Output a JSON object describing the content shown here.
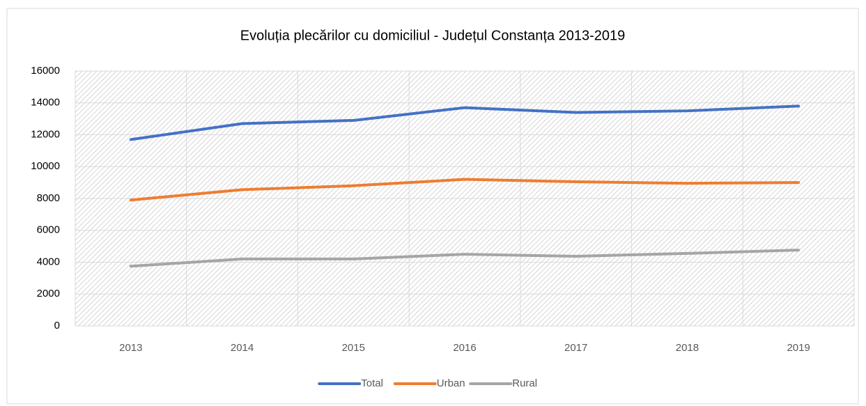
{
  "chart_data": {
    "type": "line",
    "title": "Evoluția plecărilor cu domiciliul - Județul Constanța 2013-2019",
    "categories": [
      "2013",
      "2014",
      "2015",
      "2016",
      "2017",
      "2018",
      "2019"
    ],
    "series": [
      {
        "name": "Total",
        "color": "#4472c4",
        "values": [
          11700,
          12700,
          12900,
          13700,
          13400,
          13500,
          13800
        ]
      },
      {
        "name": "Urban",
        "color": "#ed7d31",
        "values": [
          7900,
          8550,
          8800,
          9200,
          9050,
          8950,
          9000
        ]
      },
      {
        "name": "Rural",
        "color": "#a5a5a5",
        "values": [
          3750,
          4200,
          4200,
          4500,
          4370,
          4550,
          4760
        ]
      }
    ],
    "ylim": [
      0,
      16000
    ],
    "yticks": [
      0,
      2000,
      4000,
      6000,
      8000,
      10000,
      12000,
      14000,
      16000
    ],
    "grid": true,
    "legend": "bottom"
  }
}
